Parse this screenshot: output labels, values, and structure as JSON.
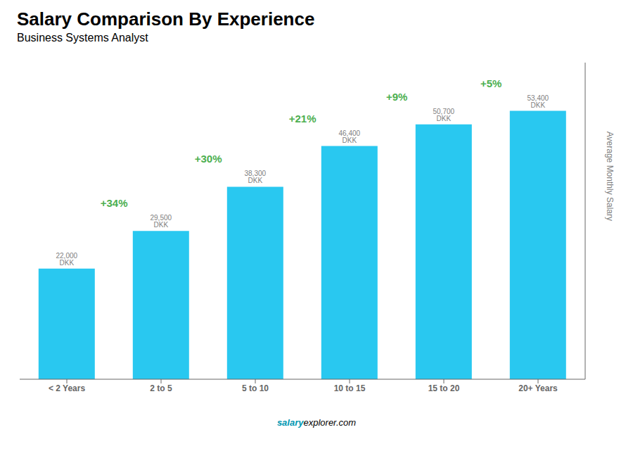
{
  "chart_data": {
    "type": "bar",
    "title": "Salary Comparison By Experience",
    "subtitle": "Business Systems Analyst",
    "y_label": "Average Monthly Salary",
    "categories": [
      "< 2 Years",
      "2 to 5",
      "5 to 10",
      "10 to 15",
      "15 to 20",
      "20+ Years"
    ],
    "values": [
      22000,
      29500,
      38300,
      46400,
      50700,
      53400
    ],
    "value_labels": [
      "22,000 DKK",
      "29,500 DKK",
      "38,300 DKK",
      "46,400 DKK",
      "50,700 DKK",
      "53,400 DKK"
    ],
    "data_labels": true,
    "annotations": [
      "+34%",
      "+30%",
      "+21%",
      "+9%",
      "+5%"
    ],
    "footer": [
      "salary",
      "explorer.com"
    ],
    "color": "#29c8f0",
    "ylim": [
      0,
      63000
    ],
    "tick_labels": "x",
    "grid": false
  }
}
